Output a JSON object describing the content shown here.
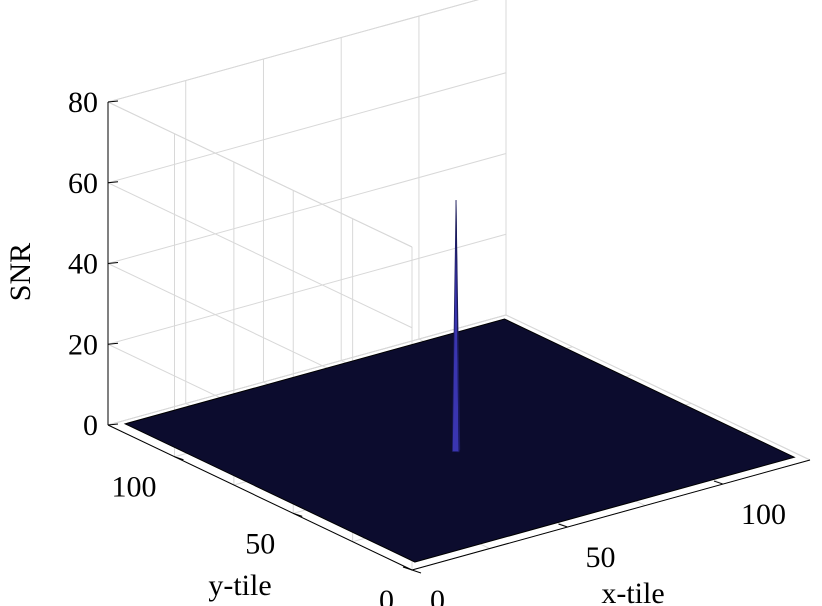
{
  "chart_data": {
    "type": "surface",
    "zlabel": "SNR",
    "xlabel": "x-tile",
    "ylabel": "y-tile",
    "zlim": [
      0,
      80
    ],
    "z_ticks": [
      "0",
      "20",
      "40",
      "60",
      "80"
    ],
    "x_ticks": [
      "0",
      "50",
      "100"
    ],
    "y_ticks": [
      "0",
      "50",
      "100"
    ],
    "grid": true,
    "surface": {
      "x_range": [
        0,
        128
      ],
      "y_range": [
        0,
        128
      ],
      "baseline": 0,
      "peak": {
        "x": 60,
        "y": 60,
        "z": 62
      }
    },
    "colors": {
      "surface": "#0c0c2e",
      "peak": "#3a35b0",
      "grid": "#d8d8d8",
      "axis": "#000000"
    }
  }
}
